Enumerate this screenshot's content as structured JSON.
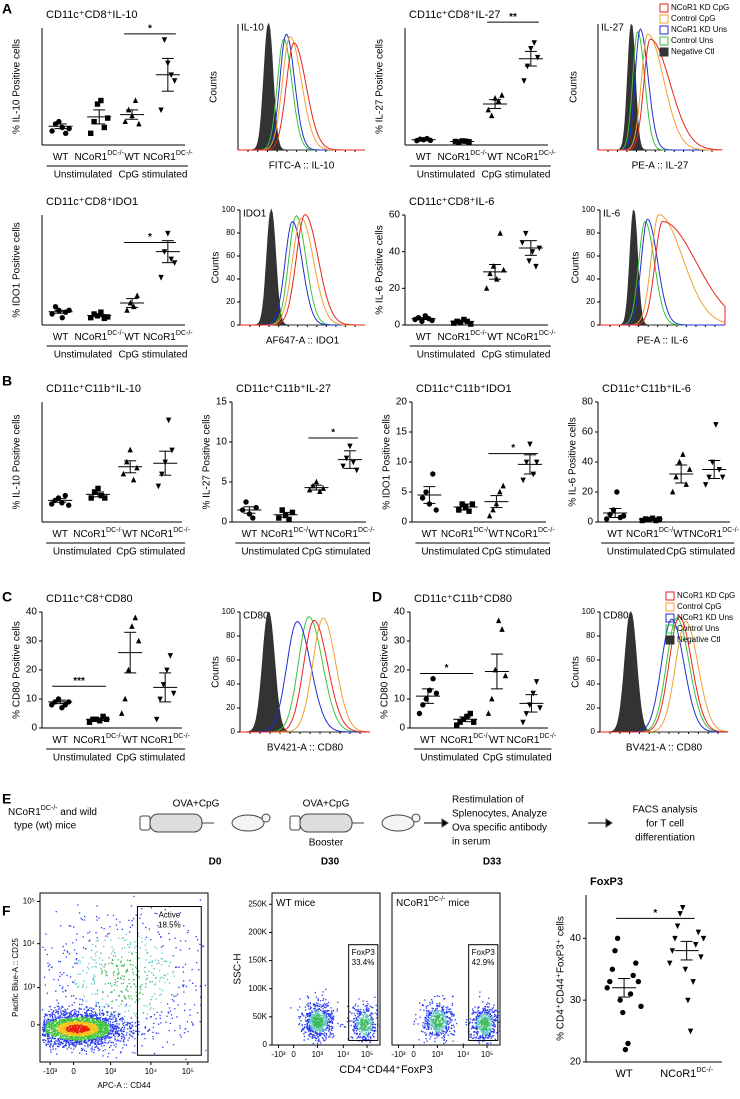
{
  "panel_labels": [
    "A",
    "B",
    "C",
    "D",
    "E",
    "F"
  ],
  "dotplots": [
    {
      "title": "CD11c⁺CD8⁺IL-10",
      "ylabel": "% IL-10 Positive cells",
      "ylim": [
        0,
        10
      ],
      "conditions": [
        "Unstimulated",
        "CpG stimulated"
      ],
      "significance": "*",
      "groups": [
        {
          "label": "WT",
          "marker": "circle",
          "values": [
            1.2,
            1.8,
            2.0,
            1.5,
            1.0,
            1.4
          ],
          "mean": 1.6,
          "sem": 0.2
        },
        {
          "label": "NCoR1",
          "sup": "DC-/-",
          "marker": "square",
          "values": [
            1.0,
            2.0,
            3.5,
            3.8,
            1.5,
            2.3
          ],
          "mean": 2.4,
          "sem": 0.6
        },
        {
          "label": "WT",
          "marker": "triangle",
          "values": [
            2.0,
            3.0,
            2.5,
            3.8,
            1.8
          ],
          "mean": 2.6,
          "sem": 0.4
        },
        {
          "label": "NCoR1",
          "sup": "DC-/-",
          "marker": "triangle-down",
          "values": [
            3.0,
            9.0,
            7.0,
            6.0,
            5.5
          ],
          "mean": 6.0,
          "sem": 1.4
        }
      ]
    },
    {
      "title": "CD11c⁺CD8⁺IL-27",
      "ylabel": "% IL-27 Positive cells",
      "ylim": [
        0,
        40
      ],
      "conditions": [
        "Unstimulated",
        "CpG stimulated"
      ],
      "significance": "**",
      "groups": [
        {
          "label": "WT",
          "marker": "circle",
          "values": [
            1.5,
            2.0,
            1.8,
            2.2,
            1.6
          ],
          "mean": 1.8,
          "sem": 0.15
        },
        {
          "label": "NCoR1",
          "sup": "DC-/-",
          "marker": "square",
          "values": [
            1.2,
            1.0,
            1.4,
            1.3,
            1.1
          ],
          "mean": 1.2,
          "sem": 0.1
        },
        {
          "label": "WT",
          "marker": "triangle",
          "values": [
            12,
            10,
            16,
            15,
            17
          ],
          "mean": 14,
          "sem": 1.5
        },
        {
          "label": "NCoR1",
          "sup": "DC-/-",
          "marker": "triangle-down",
          "values": [
            22,
            27,
            33,
            35,
            30
          ],
          "mean": 29.5,
          "sem": 2.5
        }
      ]
    },
    {
      "title": "CD11c⁺CD8⁺IDO1",
      "ylabel": "% IDO1 Positive cells",
      "ylim": [
        0,
        30
      ],
      "conditions": [
        "Unstimulated",
        "CpG stimulated"
      ],
      "significance": "*",
      "groups": [
        {
          "label": "WT",
          "marker": "circle",
          "values": [
            3,
            5,
            4,
            2,
            3.5,
            4
          ],
          "mean": 3.6,
          "sem": 0.4
        },
        {
          "label": "NCoR1",
          "sup": "DC-/-",
          "marker": "square",
          "values": [
            2,
            3,
            2.5,
            3.5,
            1.8,
            2.2
          ],
          "mean": 2.6,
          "sem": 0.3
        },
        {
          "label": "WT",
          "marker": "triangle",
          "values": [
            4,
            6,
            5,
            8
          ],
          "mean": 6,
          "sem": 1.2
        },
        {
          "label": "NCoR1",
          "sup": "DC-/-",
          "marker": "triangle-down",
          "values": [
            13,
            20,
            25,
            18,
            17
          ],
          "mean": 20,
          "sem": 3
        }
      ]
    },
    {
      "title": "CD11c⁺CD8⁺IL-6",
      "ylabel": "% IL-6 Positive cells",
      "ylim": [
        0,
        60
      ],
      "yticks": [
        0,
        20,
        40,
        60
      ],
      "conditions": [
        "Unstimulated",
        "CpG stimulated"
      ],
      "groups": [
        {
          "label": "WT",
          "marker": "circle",
          "values": [
            3,
            4,
            2,
            5,
            3.5,
            2.5
          ],
          "mean": 3.5,
          "sem": 0.5
        },
        {
          "label": "NCoR1",
          "sup": "DC-/-",
          "marker": "square",
          "values": [
            1,
            2,
            1.5,
            3,
            2,
            0.5
          ],
          "mean": 2,
          "sem": 0.4
        },
        {
          "label": "WT",
          "marker": "triangle",
          "values": [
            20,
            28,
            32,
            25,
            50,
            30
          ],
          "mean": 29,
          "sem": 4
        },
        {
          "label": "NCoR1",
          "sup": "DC-/-",
          "marker": "triangle-down",
          "values": [
            45,
            50,
            35,
            40,
            32,
            42
          ],
          "mean": 42,
          "sem": 4
        }
      ]
    },
    {
      "title": "CD11c⁺C11b⁺IL-10",
      "ylabel": "% IL-10 Positive cells",
      "ylim": [
        0,
        10
      ],
      "conditions": [
        "Unstimulated",
        "CpG stimulated"
      ],
      "groups": [
        {
          "label": "WT",
          "marker": "circle",
          "values": [
            1.5,
            1.8,
            2.0,
            1.6,
            2.2,
            1.4
          ],
          "mean": 1.8,
          "sem": 0.15
        },
        {
          "label": "NCoR1",
          "sup": "DC-/-",
          "marker": "square",
          "values": [
            2.0,
            2.5,
            2.8,
            2.2,
            2.0
          ],
          "mean": 2.3,
          "sem": 0.2
        },
        {
          "label": "WT",
          "marker": "triangle",
          "values": [
            4,
            5,
            6,
            3.5,
            4.5
          ],
          "mean": 4.6,
          "sem": 0.5
        },
        {
          "label": "NCoR1",
          "sup": "DC-/-",
          "marker": "triangle-down",
          "values": [
            3,
            4,
            5,
            8.5,
            6
          ],
          "mean": 4.9,
          "sem": 1
        }
      ]
    },
    {
      "title": "CD11c⁺C11b⁺IL-27",
      "ylabel": "% IL-27 Positive cells",
      "ylim": [
        0,
        15
      ],
      "yticks": [
        0,
        5,
        10,
        15
      ],
      "conditions": [
        "Unstimulated",
        "CpG stimulated"
      ],
      "significance": "*",
      "groups": [
        {
          "label": "WT",
          "marker": "circle",
          "values": [
            1.5,
            2.5,
            1.0,
            0.5,
            1.8
          ],
          "mean": 1.5,
          "sem": 0.4
        },
        {
          "label": "NCoR1",
          "sup": "DC-/-",
          "marker": "square",
          "values": [
            0.5,
            1.5,
            0.8,
            0.3,
            1.2
          ],
          "mean": 0.9,
          "sem": 0.3
        },
        {
          "label": "WT",
          "marker": "triangle",
          "values": [
            4,
            4.5,
            5,
            3.8,
            4.2
          ],
          "mean": 4.3,
          "sem": 0.3
        },
        {
          "label": "NCoR1",
          "sup": "DC-/-",
          "marker": "triangle-down",
          "values": [
            7,
            8,
            9.5,
            7.5,
            6.5
          ],
          "mean": 7.8,
          "sem": 1.1
        }
      ]
    },
    {
      "title": "CD11c⁺C11b⁺IDO1",
      "ylabel": "% IDO1 Positive cells",
      "ylim": [
        0,
        20
      ],
      "yticks": [
        0,
        5,
        10,
        15,
        20
      ],
      "conditions": [
        "Unstimulated",
        "CpG stimulated"
      ],
      "significance": "*",
      "groups": [
        {
          "label": "WT",
          "marker": "circle",
          "values": [
            4,
            5,
            3,
            8,
            2
          ],
          "mean": 4.5,
          "sem": 1.4
        },
        {
          "label": "NCoR1",
          "sup": "DC-/-",
          "marker": "square",
          "values": [
            2,
            3,
            2.5,
            1.8,
            3
          ],
          "mean": 2.5,
          "sem": 0.5
        },
        {
          "label": "WT",
          "marker": "triangle",
          "values": [
            1,
            2,
            3,
            5,
            6
          ],
          "mean": 3.4,
          "sem": 1
        },
        {
          "label": "NCoR1",
          "sup": "DC-/-",
          "marker": "triangle-down",
          "values": [
            7,
            10,
            13,
            8,
            10
          ],
          "mean": 9.6,
          "sem": 1.6
        }
      ]
    },
    {
      "title": "CD11c⁺C11b⁺IL-6",
      "ylabel": "% IL-6 Positive cells",
      "ylim": [
        0,
        80
      ],
      "yticks": [
        0,
        20,
        40,
        60,
        80
      ],
      "conditions": [
        "Unstimulated",
        "CpG stimulated"
      ],
      "groups": [
        {
          "label": "WT",
          "marker": "circle",
          "values": [
            2,
            5,
            8,
            20,
            3,
            4
          ],
          "mean": 6,
          "sem": 3
        },
        {
          "label": "NCoR1",
          "sup": "DC-/-",
          "marker": "square",
          "values": [
            1,
            2,
            1.5,
            2.5,
            1,
            2
          ],
          "mean": 2,
          "sem": 0.5
        },
        {
          "label": "WT",
          "marker": "triangle",
          "values": [
            20,
            30,
            40,
            45,
            25,
            35
          ],
          "mean": 32,
          "sem": 6
        },
        {
          "label": "NCoR1",
          "sup": "DC-/-",
          "marker": "triangle-down",
          "values": [
            25,
            30,
            40,
            65,
            35,
            30
          ],
          "mean": 35,
          "sem": 6
        }
      ]
    },
    {
      "title": "CD11c⁺C8⁺CD80",
      "ylabel": "% CD80 Positive cells",
      "ylim": [
        0,
        40
      ],
      "yticks": [
        0,
        10,
        20,
        30,
        40
      ],
      "conditions": [
        "Unstimulated",
        "CpG stimulated"
      ],
      "significance": "***",
      "groups": [
        {
          "label": "WT",
          "marker": "circle",
          "values": [
            8,
            9,
            10,
            7,
            8,
            9
          ],
          "mean": 9,
          "sem": 0.6
        },
        {
          "label": "NCoR1",
          "sup": "DC-/-",
          "marker": "square",
          "values": [
            2,
            3,
            3,
            2.5,
            4,
            3
          ],
          "mean": 3,
          "sem": 0.4
        },
        {
          "label": "WT",
          "marker": "triangle",
          "values": [
            5,
            10,
            20,
            35,
            38,
            30
          ],
          "mean": 26,
          "sem": 7
        },
        {
          "label": "NCoR1",
          "sup": "DC-/-",
          "marker": "triangle-down",
          "values": [
            3,
            10,
            15,
            20,
            25,
            12
          ],
          "mean": 14,
          "sem": 5
        }
      ]
    },
    {
      "title": "CD11c⁺C11b⁺CD80",
      "ylabel": "% CD80 Positive cells",
      "ylim": [
        0,
        40
      ],
      "yticks": [
        0,
        10,
        20,
        30,
        40
      ],
      "conditions": [
        "Unstimulated",
        "CpG stimulated"
      ],
      "significance": "*",
      "groups": [
        {
          "label": "WT",
          "marker": "circle",
          "values": [
            5,
            8,
            10,
            13,
            17,
            12
          ],
          "mean": 11,
          "sem": 2.5
        },
        {
          "label": "NCoR1",
          "sup": "DC-/-",
          "marker": "square",
          "values": [
            1,
            2,
            3,
            4,
            5,
            2
          ],
          "mean": 3,
          "sem": 0.8
        },
        {
          "label": "WT",
          "marker": "triangle",
          "values": [
            5,
            10,
            20,
            37,
            34,
            18
          ],
          "mean": 19.5,
          "sem": 6
        },
        {
          "label": "NCoR1",
          "sup": "DC-/-",
          "marker": "triangle-down",
          "values": [
            2,
            5,
            8,
            12,
            16,
            7
          ],
          "mean": 8.5,
          "sem": 3
        }
      ]
    },
    {
      "title": "FoxP3",
      "ylabel": "% CD4⁺CD44⁺FoxP3⁺ cells",
      "ylim": [
        20,
        47
      ],
      "yticks": [
        20,
        30,
        40
      ],
      "significance": "*",
      "groups": [
        {
          "label": "WT",
          "marker": "circle",
          "values": [
            32,
            33,
            35,
            38,
            40,
            30,
            28,
            22,
            23,
            31,
            34,
            36,
            33,
            29
          ],
          "mean": 32,
          "sem": 1.5
        },
        {
          "label": "NCoR1",
          "sup": "DC-/-",
          "marker": "triangle-down",
          "values": [
            36,
            38,
            40,
            42,
            44,
            45,
            35,
            30,
            25,
            33,
            39,
            41,
            37,
            40
          ],
          "mean": 38,
          "sem": 1.5
        }
      ]
    }
  ],
  "histograms": [
    {
      "label": "IL-10",
      "xlabel": "FITC-A :: IL-10",
      "ylabel": "Counts",
      "ylim": [
        0,
        100
      ]
    },
    {
      "label": "IL-27",
      "xlabel": "PE-A :: IL-27",
      "ylabel": "Counts",
      "ylim": [
        0,
        100
      ],
      "legend": "top-right"
    },
    {
      "label": "IDO1",
      "xlabel": "AF647-A :: IDO1",
      "ylabel": "Counts",
      "ylim": [
        0,
        100
      ],
      "yticks": [
        0,
        20,
        40,
        60,
        80,
        100
      ]
    },
    {
      "label": "IL-6",
      "xlabel": "PE-A :: IL-6",
      "ylabel": "Counts",
      "ylim": [
        0,
        100
      ],
      "yticks": [
        0,
        20,
        40,
        60,
        80,
        100
      ]
    },
    {
      "label": "CD80",
      "xlabel": "BV421-A :: CD80",
      "ylabel": "Counts",
      "ylim": [
        0,
        100
      ],
      "yticks": [
        0,
        20,
        40,
        60,
        80,
        100
      ]
    },
    {
      "label": "CD80",
      "xlabel": "BV421-A :: CD80",
      "ylabel": "Counts",
      "ylim": [
        0,
        100
      ],
      "yticks": [
        0,
        20,
        40,
        60,
        80,
        100
      ],
      "legend": "top-right"
    }
  ],
  "legend": [
    {
      "name": "NCoR1 KD CpG",
      "color": "#e8231f"
    },
    {
      "name": "Control CpG",
      "color": "#f0a030"
    },
    {
      "name": "NCoR1 KD Uns",
      "color": "#1f2fd0"
    },
    {
      "name": "Control Uns",
      "color": "#3ac23a"
    },
    {
      "name": "Negative Ctl",
      "color": "#333333"
    }
  ],
  "schematic": {
    "mice": {
      "label": "NCoR1",
      "sup": "DC-/-",
      "rest": " and wild",
      "line2": "type (wt) mice"
    },
    "step1": {
      "treatment": "OVA+CpG",
      "day": "D0"
    },
    "step2": {
      "treatment": "OVA+CpG",
      "note": "Booster",
      "day": "D30"
    },
    "step3": {
      "lines": [
        "Restimulation of",
        "Splenocytes, Analyze",
        "Ova specific antibody",
        "in serum"
      ],
      "day": "D33"
    },
    "step4": {
      "lines": [
        "FACS analysis",
        "for T cell",
        "differentiation"
      ]
    }
  },
  "flow": {
    "activation": {
      "ylabel": "Pacific Blue-A :: CD25",
      "xlabel": "APC-A :: CD44",
      "yticks": [
        {
          "value": 100000,
          "label": "10⁵"
        },
        {
          "value": 10000,
          "label": "10⁴"
        },
        {
          "value": 1000,
          "label": "10³"
        },
        0
      ],
      "xticks": [
        {
          "value": -1000,
          "label": "-10³"
        },
        0,
        {
          "value": 1000,
          "label": "10³"
        },
        {
          "value": 10000,
          "label": "10⁴"
        },
        {
          "value": 100000,
          "label": "10⁵"
        }
      ],
      "gate": "Active",
      "percent": "18.5%"
    },
    "foxp3": {
      "ylabel": "SSC-H",
      "xlabel": "CD4⁺CD44⁺FoxP3",
      "ylim": [
        0,
        270000
      ],
      "yticks": [
        0,
        {
          "value": 50000,
          "label": "50K"
        },
        {
          "value": 100000,
          "label": "100K"
        },
        {
          "value": 150000,
          "label": "150K"
        },
        {
          "value": 200000,
          "label": "200K"
        },
        {
          "value": 250000,
          "label": "250K"
        }
      ],
      "xticks": [
        {
          "value": -1000,
          "label": "-10³"
        },
        0,
        {
          "value": 1000,
          "label": "10³"
        },
        {
          "value": 10000,
          "label": "10⁴"
        },
        {
          "value": 100000,
          "label": "10⁵"
        }
      ],
      "plots": [
        {
          "title": "WT mice",
          "gate": "FoxP3",
          "percent": "33.4%"
        },
        {
          "title": "NCoR1",
          "sup": "DC-/-",
          "rest": " mice",
          "gate": "FoxP3",
          "percent": "42.9%"
        }
      ]
    }
  }
}
